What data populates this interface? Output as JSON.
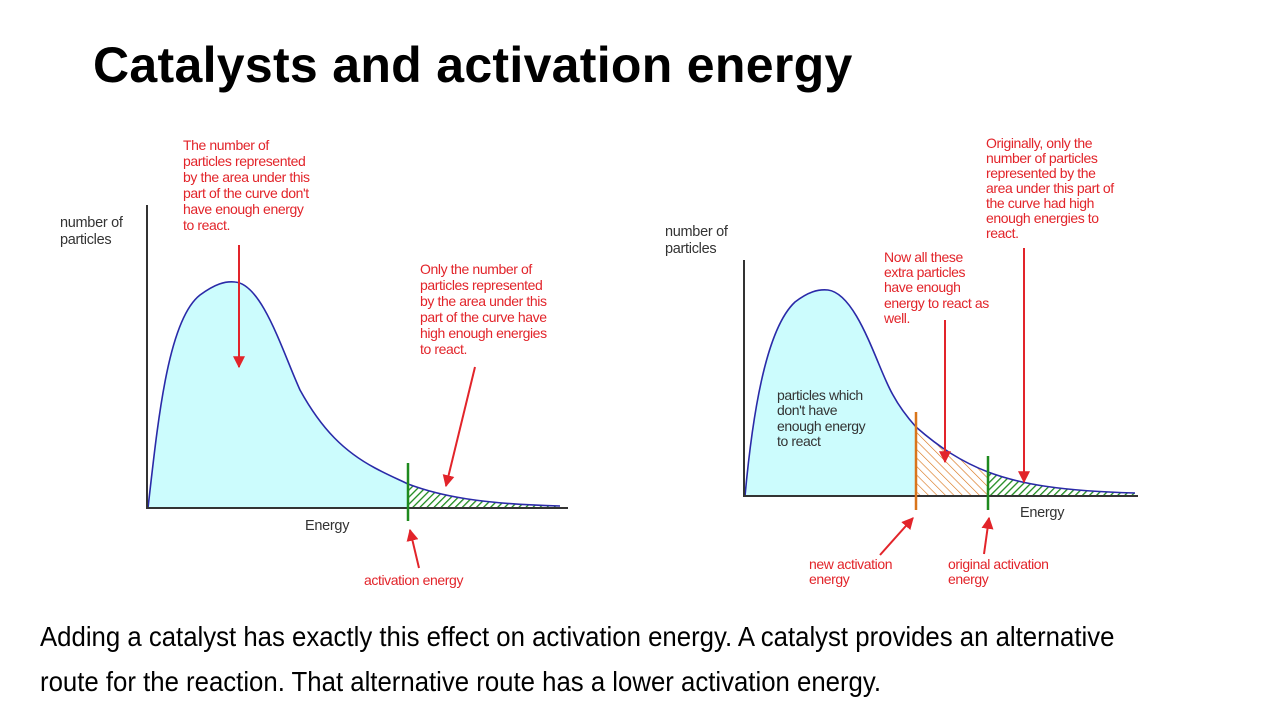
{
  "slide": {
    "title": "Catalysts and activation energy",
    "caption": "Adding a catalyst has exactly this effect on activation energy. A catalyst provides an alternative route for the reaction. That alternative route has a lower activation energy."
  },
  "left_graph": {
    "y_axis_label": [
      "number of",
      "particles"
    ],
    "x_axis_label": "Energy",
    "note_not_enough": [
      "The number of",
      "particles represented",
      "by the area under this",
      "part of the curve don't",
      "have enough energy",
      "to react."
    ],
    "note_enough": [
      "Only the number of",
      "particles represented",
      "by the area under this",
      "part of the curve have",
      "high enough energies",
      "to react."
    ],
    "activation_label": "activation energy"
  },
  "right_graph": {
    "y_axis_label": [
      "number of",
      "particles"
    ],
    "x_axis_label": "Energy",
    "note_originally": [
      "Originally, only the",
      "number of particles",
      "represented by the",
      "area under this part of",
      "the curve had high",
      "enough energies to",
      "react."
    ],
    "note_now_all": [
      "Now all these",
      "extra particles",
      "have enough",
      "energy to react as",
      "well."
    ],
    "note_dont_have": [
      "particles which",
      "don't have",
      "enough energy",
      "to react"
    ],
    "new_activation_label": [
      "new activation",
      "energy"
    ],
    "original_activation_label": [
      "original activation",
      "energy"
    ]
  },
  "colors": {
    "curve_fill": "#ccfcfd",
    "curve_line": "#2a2aa8",
    "annotation": "#e2242a",
    "original_activation": "#1e8a1e",
    "new_activation": "#d9751a"
  }
}
